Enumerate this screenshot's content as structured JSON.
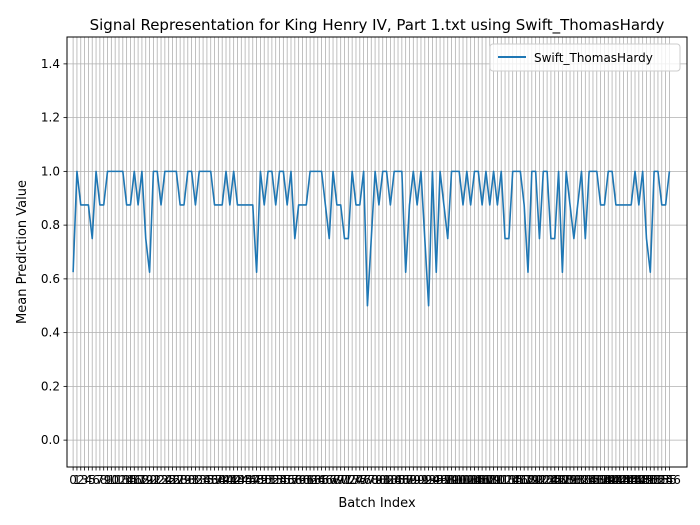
{
  "chart_data": {
    "type": "line",
    "title": "Signal Representation for King Henry IV, Part 1.txt using Swift_ThomasHardy",
    "xlabel": "Batch Index",
    "ylabel": "Mean Prediction Value",
    "xlim": [
      -1.6,
      160.6
    ],
    "ylim": [
      -0.1,
      1.5
    ],
    "yticks": [
      "0.0",
      "0.2",
      "0.4",
      "0.6",
      "0.8",
      "1.0",
      "1.2",
      "1.4"
    ],
    "grid": true,
    "legend_position": "top-right",
    "series": [
      {
        "name": "Swift_ThomasHardy",
        "color": "#1f77b4",
        "values": [
          0.625,
          1.0,
          0.875,
          0.875,
          0.875,
          0.75,
          1.0,
          0.875,
          0.875,
          1.0,
          1.0,
          1.0,
          1.0,
          1.0,
          0.875,
          0.875,
          1.0,
          0.875,
          1.0,
          0.75,
          0.625,
          1.0,
          1.0,
          0.875,
          1.0,
          1.0,
          1.0,
          1.0,
          0.875,
          0.875,
          1.0,
          1.0,
          0.875,
          1.0,
          1.0,
          1.0,
          1.0,
          0.875,
          0.875,
          0.875,
          1.0,
          0.875,
          1.0,
          0.875,
          0.875,
          0.875,
          0.875,
          0.875,
          0.625,
          1.0,
          0.875,
          1.0,
          1.0,
          0.875,
          1.0,
          1.0,
          0.875,
          1.0,
          0.75,
          0.875,
          0.875,
          0.875,
          1.0,
          1.0,
          1.0,
          1.0,
          0.875,
          0.75,
          1.0,
          0.875,
          0.875,
          0.75,
          0.75,
          1.0,
          0.875,
          0.875,
          1.0,
          0.5,
          0.75,
          1.0,
          0.875,
          1.0,
          1.0,
          0.875,
          1.0,
          1.0,
          1.0,
          0.625,
          0.875,
          1.0,
          0.875,
          1.0,
          0.75,
          0.5,
          1.0,
          0.625,
          1.0,
          0.875,
          0.75,
          1.0,
          1.0,
          1.0,
          0.875,
          1.0,
          0.875,
          1.0,
          1.0,
          0.875,
          1.0,
          0.875,
          1.0,
          0.875,
          1.0,
          0.75,
          0.75,
          1.0,
          1.0,
          1.0,
          0.875,
          0.625,
          1.0,
          1.0,
          0.75,
          1.0,
          1.0,
          0.75,
          0.75,
          1.0,
          0.625,
          1.0,
          0.875,
          0.75,
          0.875,
          1.0,
          0.75,
          1.0,
          1.0,
          1.0,
          0.875,
          0.875,
          1.0,
          1.0,
          0.875,
          0.875,
          0.875,
          0.875,
          0.875,
          1.0,
          0.875,
          1.0,
          0.75,
          0.625,
          1.0,
          1.0,
          0.875,
          0.875,
          1.0
        ]
      }
    ]
  }
}
